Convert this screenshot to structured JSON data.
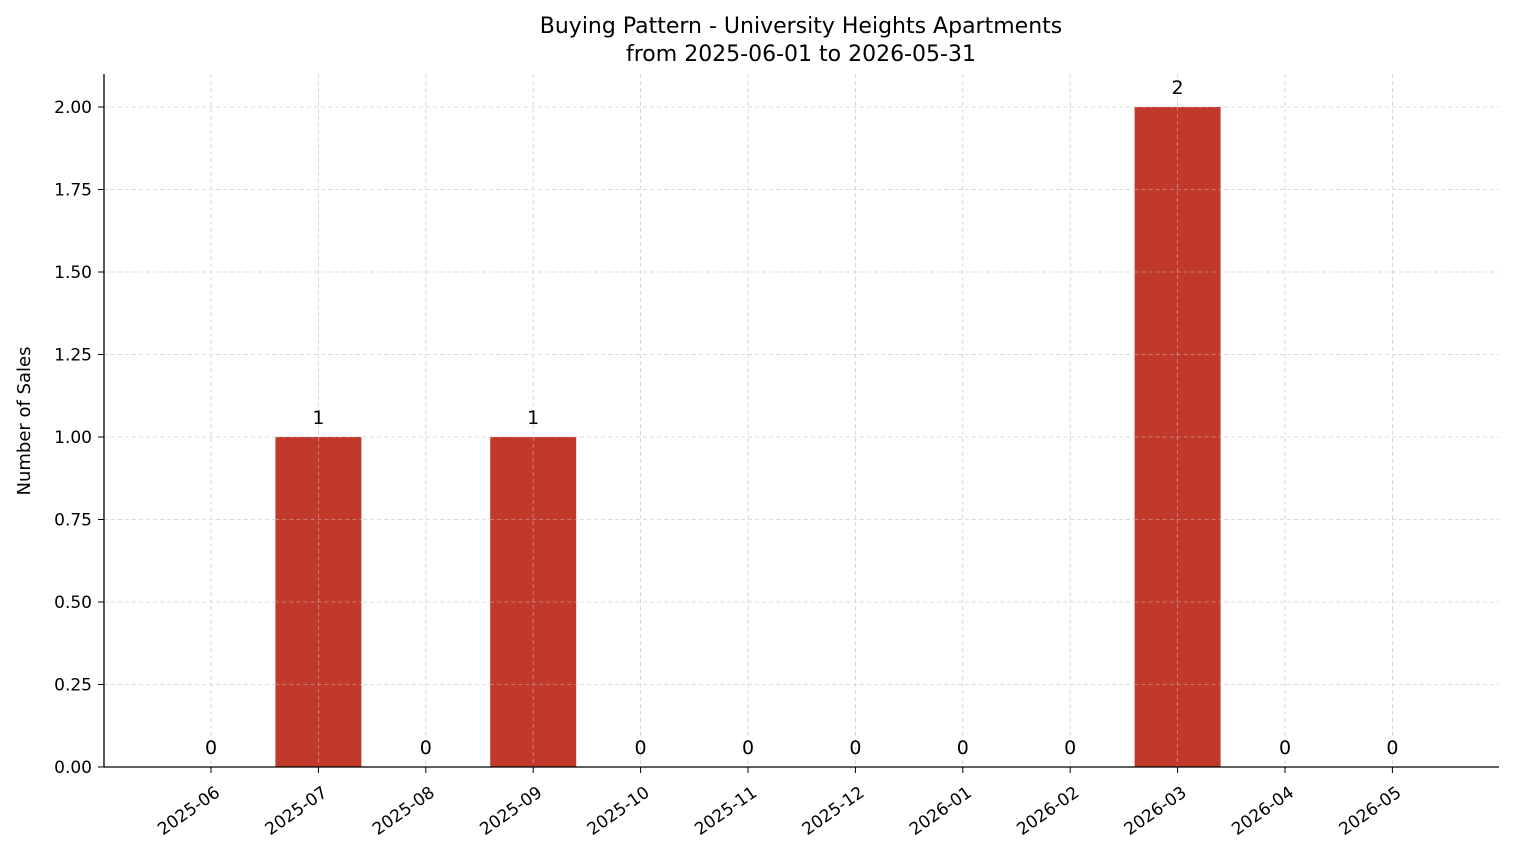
{
  "chart_data": {
    "type": "bar",
    "title": "Buying Pattern - University Heights Apartments",
    "subtitle": "from 2025-06-01 to 2026-05-31",
    "xlabel": "",
    "ylabel": "Number of Sales",
    "categories": [
      "2025-06",
      "2025-07",
      "2025-08",
      "2025-09",
      "2025-10",
      "2025-11",
      "2025-12",
      "2026-01",
      "2026-02",
      "2026-03",
      "2026-04",
      "2026-05"
    ],
    "values": [
      0,
      1,
      0,
      1,
      0,
      0,
      0,
      0,
      0,
      2,
      0,
      0
    ],
    "data_labels": [
      "0",
      "1",
      "0",
      "1",
      "0",
      "0",
      "0",
      "0",
      "0",
      "2",
      "0",
      "0"
    ],
    "ylim": [
      0,
      2.1
    ],
    "yticks": [
      0,
      0.25,
      0.5,
      0.75,
      1.0,
      1.25,
      1.5,
      1.75,
      2.0
    ],
    "ytick_labels": [
      "0.00",
      "0.25",
      "0.50",
      "0.75",
      "1.00",
      "1.25",
      "1.50",
      "1.75",
      "2.00"
    ],
    "grid": true,
    "bar_color": "#c0392b"
  }
}
